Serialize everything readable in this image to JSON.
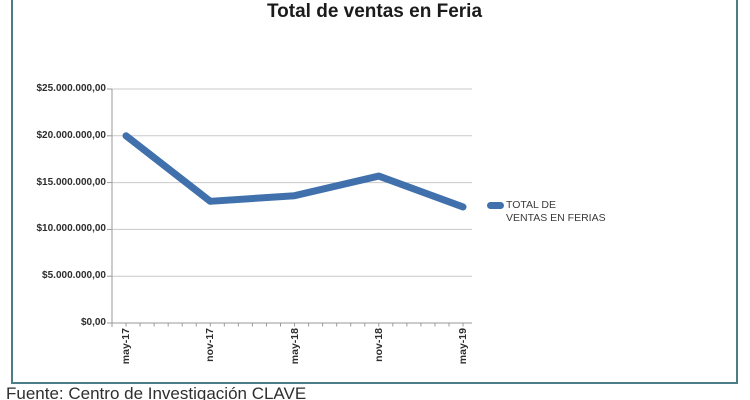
{
  "chart_data": {
    "type": "line",
    "title": "Total de ventas en Feria",
    "categories": [
      "may-17",
      "nov-17",
      "may-18",
      "nov-18",
      "may-19"
    ],
    "series": [
      {
        "name": "TOTAL DE VENTAS EN FERIAS",
        "values": [
          20000000,
          13000000,
          13600000,
          15700000,
          12400000
        ]
      }
    ],
    "xlabel": "",
    "ylabel": "",
    "ylim": [
      0,
      25000000
    ],
    "ytick_step": 5000000,
    "ytick_labels": [
      "$0,00",
      "$5.000.000,00",
      "$10.000.000,00",
      "$15.000.000,00",
      "$20.000.000,00",
      "$25.000.000,00"
    ],
    "grid": "horizontal",
    "legend_position": "right",
    "line_color": "#4171ac",
    "minor_ticks_per_interval": 6
  },
  "legend": {
    "line1": "TOTAL DE",
    "line2": "VENTAS EN FERIAS"
  },
  "footer": {
    "text": "Fuente: Centro de Investigación CLAVE"
  },
  "colors": {
    "border": "#4d7e87",
    "gridline": "#c9c9c9",
    "axis": "#9a9a9a"
  }
}
